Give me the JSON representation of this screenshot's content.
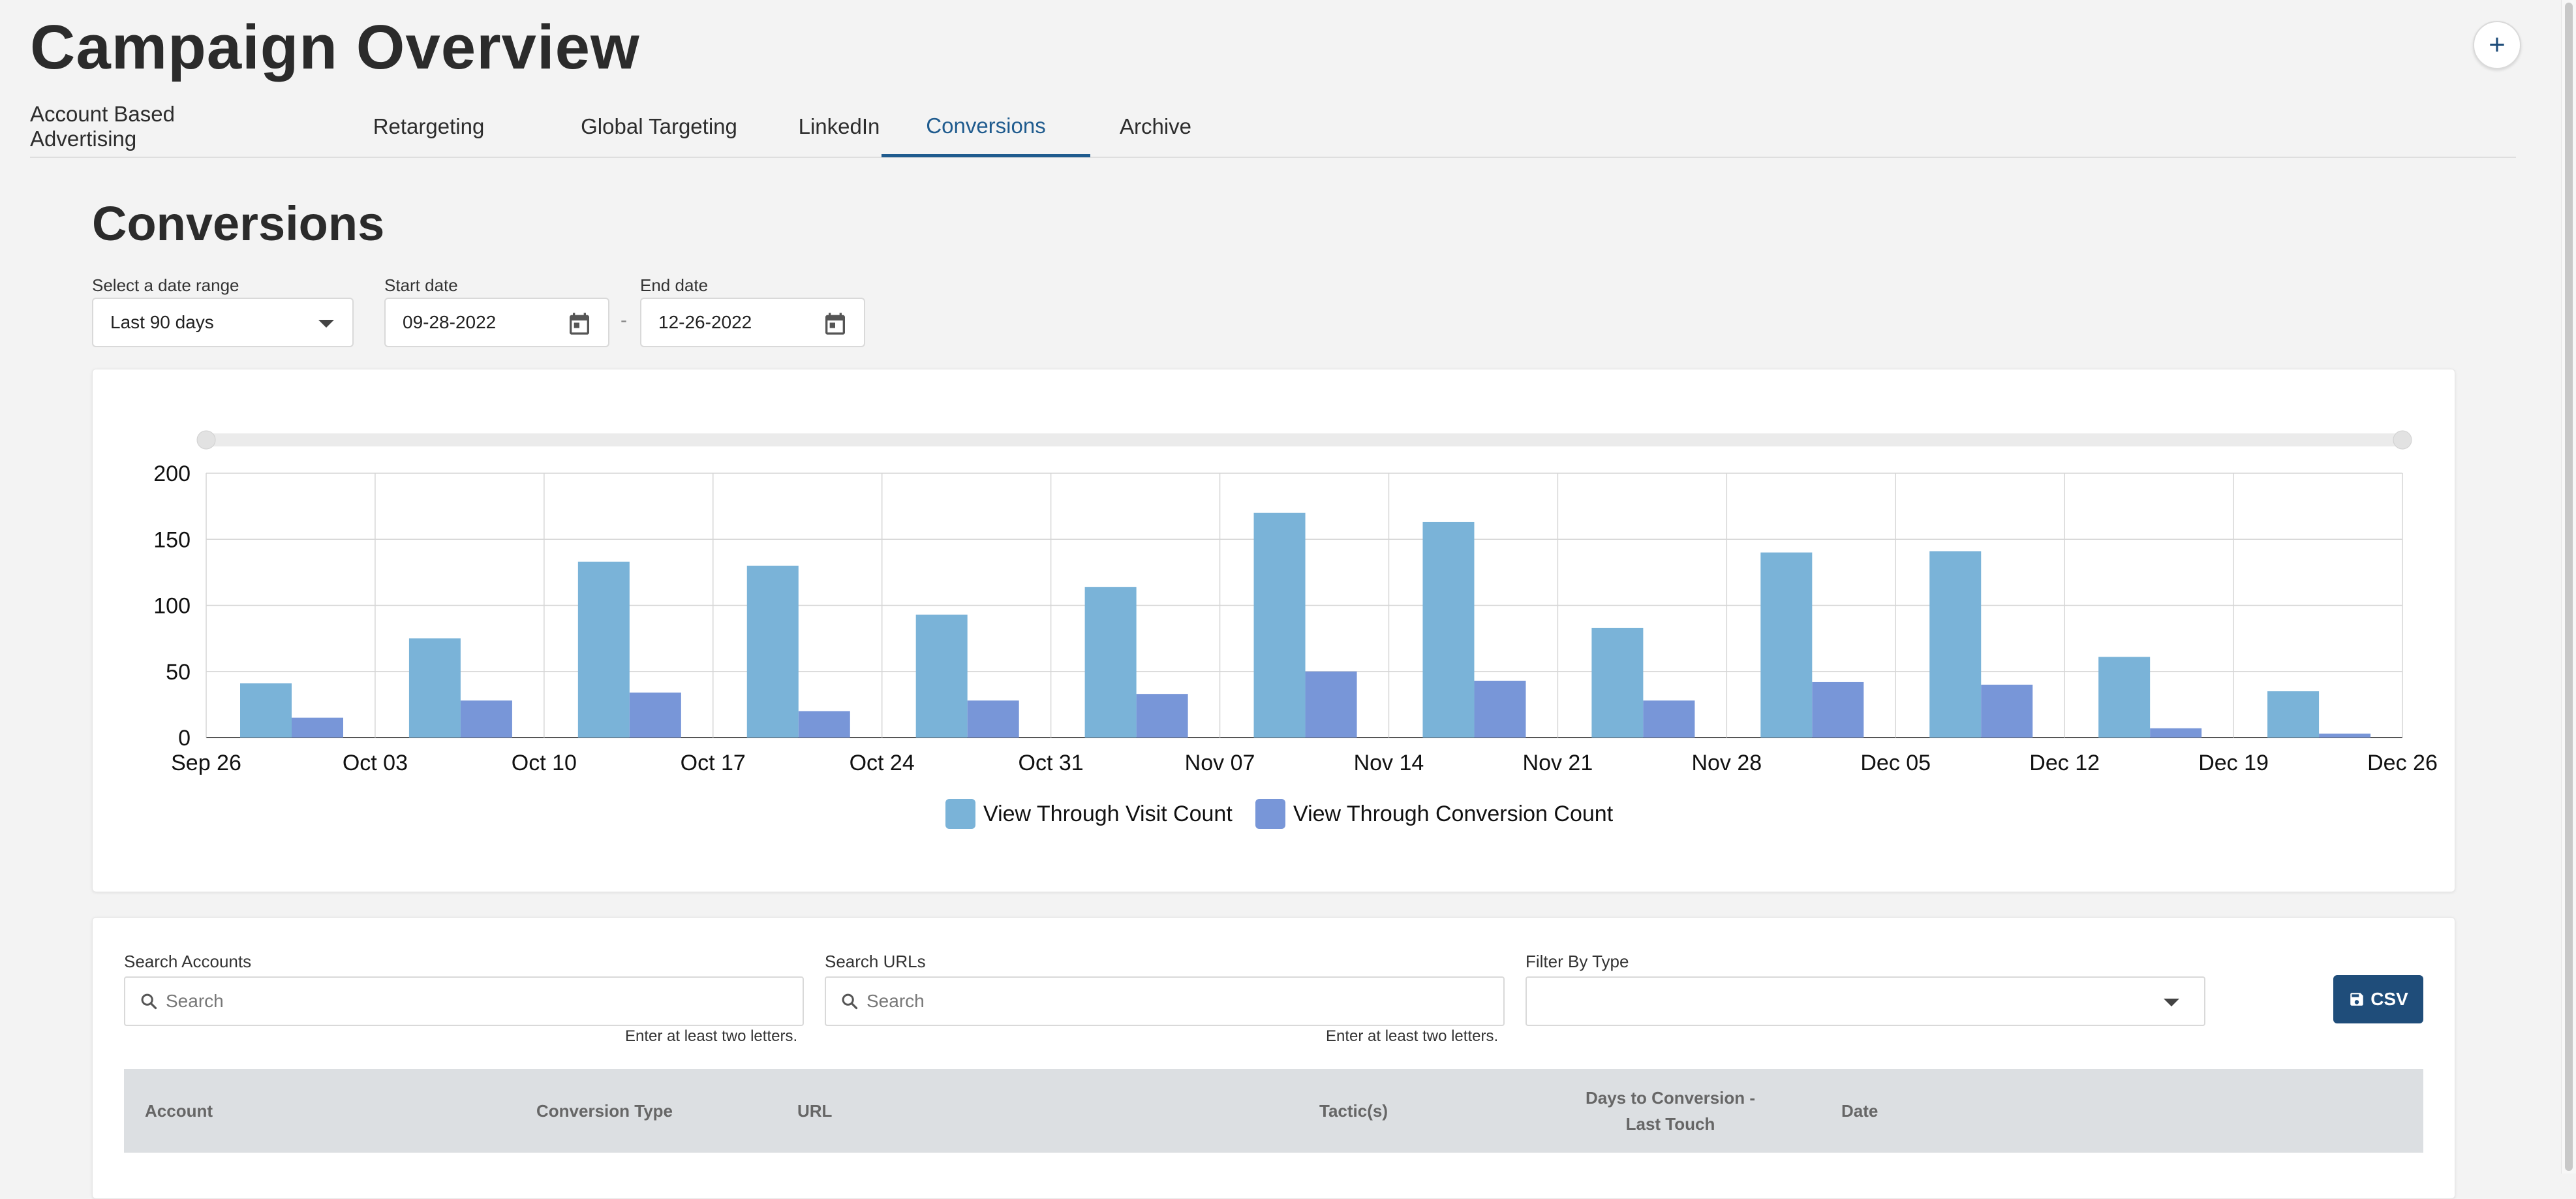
{
  "header": {
    "title": "Campaign Overview",
    "add_icon": "plus-icon"
  },
  "tabs": [
    {
      "label": "Account Based Advertising",
      "active": false
    },
    {
      "label": "Retargeting",
      "active": false
    },
    {
      "label": "Global Targeting",
      "active": false
    },
    {
      "label": "LinkedIn",
      "active": false
    },
    {
      "label": "Conversions",
      "active": true
    },
    {
      "label": "Archive",
      "active": false
    }
  ],
  "section": {
    "title": "Conversions"
  },
  "filters": {
    "date_range_label": "Select a date range",
    "date_range_value": "Last 90 days",
    "start_label": "Start date",
    "start_value": "09-28-2022",
    "end_label": "End date",
    "end_value": "12-26-2022",
    "separator": "-"
  },
  "chart_data": {
    "type": "bar",
    "categories": [
      "Sep 26",
      "Oct 03",
      "Oct 10",
      "Oct 17",
      "Oct 24",
      "Oct 31",
      "Nov 07",
      "Nov 14",
      "Nov 21",
      "Nov 28",
      "Dec 05",
      "Dec 12",
      "Dec 19"
    ],
    "x_ticks": [
      "Sep 26",
      "Oct 03",
      "Oct 10",
      "Oct 17",
      "Oct 24",
      "Oct 31",
      "Nov 07",
      "Nov 14",
      "Nov 21",
      "Nov 28",
      "Dec 05",
      "Dec 12",
      "Dec 19",
      "Dec 26"
    ],
    "series": [
      {
        "name": "View Through Visit Count",
        "color": "#7ab3d8",
        "values": [
          41,
          75,
          133,
          130,
          93,
          114,
          170,
          163,
          83,
          140,
          141,
          61,
          35
        ]
      },
      {
        "name": "View Through Conversion Count",
        "color": "#7896d8",
        "values": [
          15,
          28,
          34,
          20,
          28,
          33,
          50,
          43,
          28,
          42,
          40,
          7,
          3
        ]
      }
    ],
    "ylim": [
      0,
      200
    ],
    "y_ticks": [
      0,
      50,
      100,
      150,
      200
    ],
    "grid": true,
    "legend_position": "bottom-center"
  },
  "table_controls": {
    "accounts_label": "Search Accounts",
    "accounts_placeholder": "Search",
    "urls_label": "Search URLs",
    "urls_placeholder": "Search",
    "type_label": "Filter By Type",
    "hint": "Enter at least two letters.",
    "csv_label": "CSV"
  },
  "table": {
    "columns": [
      "Account",
      "Conversion Type",
      "URL",
      "Tactic(s)",
      "Days to Conversion - Last Touch",
      "Date"
    ]
  }
}
